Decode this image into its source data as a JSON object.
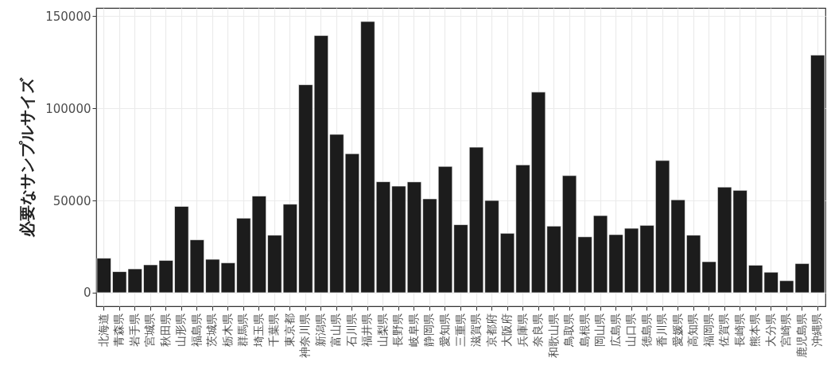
{
  "chart_data": {
    "type": "bar",
    "ylabel": "必要なサンプルサイズ",
    "categories": [
      "北海道",
      "青森県",
      "岩手県",
      "宮城県",
      "秋田県",
      "山形県",
      "福島県",
      "茨城県",
      "栃木県",
      "群馬県",
      "埼玉県",
      "千葉県",
      "東京都",
      "神奈川県",
      "新潟県",
      "富山県",
      "石川県",
      "福井県",
      "山梨県",
      "長野県",
      "岐阜県",
      "静岡県",
      "愛知県",
      "三重県",
      "滋賀県",
      "京都府",
      "大阪府",
      "兵庫県",
      "奈良県",
      "和歌山県",
      "鳥取県",
      "島根県",
      "岡山県",
      "広島県",
      "山口県",
      "徳島県",
      "香川県",
      "愛媛県",
      "高知県",
      "福岡県",
      "佐賀県",
      "長崎県",
      "熊本県",
      "大分県",
      "宮崎県",
      "鹿児島県",
      "沖縄県"
    ],
    "values": [
      18700,
      11400,
      12900,
      15100,
      17500,
      46800,
      28700,
      18100,
      16200,
      40400,
      52400,
      31200,
      48000,
      112800,
      139500,
      85900,
      75400,
      147100,
      60200,
      57800,
      60100,
      50900,
      68500,
      36900,
      78900,
      50000,
      32200,
      69300,
      108800,
      36100,
      63500,
      30300,
      41800,
      31500,
      34900,
      36500,
      71700,
      50400,
      31200,
      16800,
      57300,
      55500,
      14900,
      11100,
      6500,
      15800,
      128900
    ],
    "color": "#1c1c1c",
    "ylim": [
      -7355,
      154455
    ],
    "yticks": [
      0,
      50000,
      100000,
      150000
    ],
    "grid": true
  }
}
